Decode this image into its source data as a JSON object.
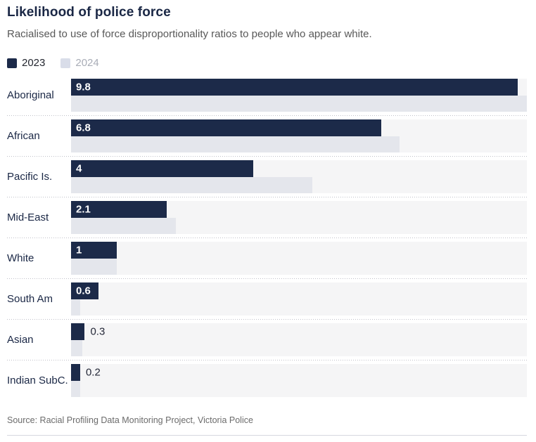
{
  "header": {
    "title": "Likelihood of police force",
    "subtitle": "Racialised to use of force disproportionality ratios to people who appear white."
  },
  "legend": {
    "items": [
      {
        "label": "2023",
        "swatch_color": "#1c2a49",
        "text_color": "#23262f"
      },
      {
        "label": "2024",
        "swatch_color": "#d9dde9",
        "text_color": "#a9adb7"
      }
    ]
  },
  "chart_data": {
    "type": "bar",
    "orientation": "horizontal",
    "title": "Likelihood of police force",
    "subtitle": "Racialised to use of force disproportionality ratios to people who appear white.",
    "categories": [
      "Aboriginal",
      "African",
      "Pacific Is.",
      "Mid-East",
      "White",
      "South Am",
      "Asian",
      "Indian SubC."
    ],
    "series": [
      {
        "name": "2023",
        "color": "#1c2a49",
        "values": [
          9.8,
          6.8,
          4,
          2.1,
          1,
          0.6,
          0.3,
          0.2
        ],
        "value_labels": [
          "9.8",
          "6.8",
          "4",
          "2.1",
          "1",
          "0.6",
          "0.3",
          "0.2"
        ]
      },
      {
        "name": "2024",
        "color": "#e4e6ec",
        "values": [
          10,
          7.2,
          5.3,
          2.3,
          1,
          0.2,
          0.25,
          0.2
        ],
        "value_labels": []
      }
    ],
    "xlim": [
      0,
      10
    ],
    "grid": false,
    "legend_position": "top-left",
    "track_color": "#f5f5f6",
    "value_labels_shown_for_series": "2023"
  },
  "footer": {
    "source": "Source: Racial Profiling Data Monitoring Project, Victoria Police"
  }
}
